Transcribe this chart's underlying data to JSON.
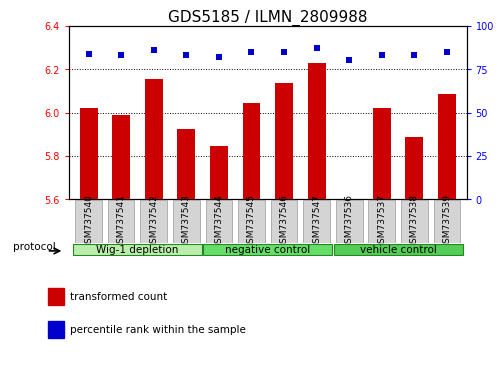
{
  "title": "GDS5185 / ILMN_2809988",
  "samples": [
    "GSM737540",
    "GSM737541",
    "GSM737542",
    "GSM737543",
    "GSM737544",
    "GSM737545",
    "GSM737546",
    "GSM737547",
    "GSM737536",
    "GSM737537",
    "GSM737538",
    "GSM737539"
  ],
  "bar_values": [
    6.02,
    5.99,
    6.155,
    5.925,
    5.845,
    6.045,
    6.135,
    6.23,
    5.601,
    6.02,
    5.885,
    6.085
  ],
  "percentile_values": [
    84,
    83,
    86,
    83,
    82,
    85,
    85,
    87,
    80,
    83,
    83,
    85
  ],
  "bar_color": "#cc0000",
  "dot_color": "#0000cc",
  "ylim_left": [
    5.6,
    6.4
  ],
  "ylim_right": [
    0,
    100
  ],
  "yticks_left": [
    5.6,
    5.8,
    6.0,
    6.2,
    6.4
  ],
  "yticks_right": [
    0,
    25,
    50,
    75,
    100
  ],
  "groups": [
    {
      "label": "Wig-1 depletion",
      "start": 0,
      "end": 4,
      "color": "#bbeeaa"
    },
    {
      "label": "negative control",
      "start": 4,
      "end": 8,
      "color": "#66dd66"
    },
    {
      "label": "vehicle control",
      "start": 8,
      "end": 12,
      "color": "#55cc55"
    }
  ],
  "protocol_label": "protocol",
  "legend_items": [
    {
      "label": "transformed count",
      "color": "#cc0000"
    },
    {
      "label": "percentile rank within the sample",
      "color": "#0000cc"
    }
  ],
  "bar_width": 0.55,
  "title_fontsize": 11,
  "tick_fontsize": 7,
  "sample_fontsize": 6.5,
  "group_fontsize": 7.5
}
